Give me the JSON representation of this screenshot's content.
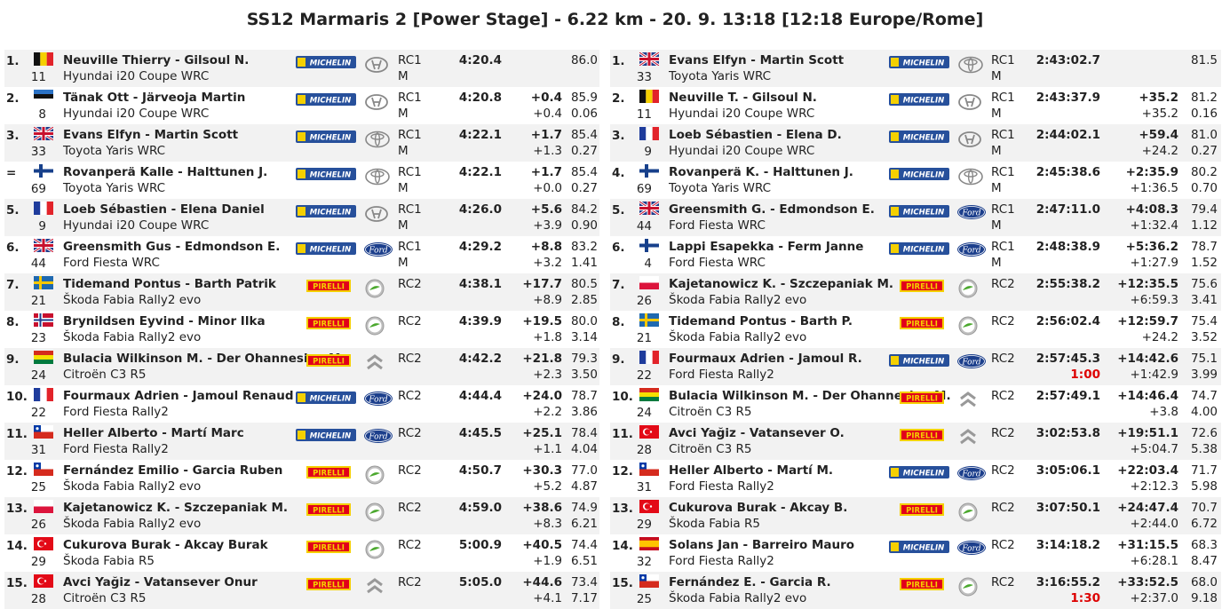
{
  "title": "SS12 Marmaris 2 [Power Stage] - 6.22 km - 20. 9. 13:18 [12:18 Europe/Rome]",
  "left": [
    {
      "pos": "1.",
      "flag": "BEL",
      "num": "11",
      "crew": "Neuville Thierry - Gilsoul N.",
      "car": "Hyundai i20 Coupe WRC",
      "tyre": "michelin",
      "brand": "hyundai",
      "cls": "RC1",
      "cls2": "M",
      "time": "4:20.4",
      "pen": "",
      "diff": "",
      "diff2": "",
      "spd": "86.0",
      "spd2": ""
    },
    {
      "pos": "2.",
      "flag": "EST",
      "num": "8",
      "crew": "Tänak Ott - Järveoja Martin",
      "car": "Hyundai i20 Coupe WRC",
      "tyre": "michelin",
      "brand": "hyundai",
      "cls": "RC1",
      "cls2": "M",
      "time": "4:20.8",
      "pen": "",
      "diff": "+0.4",
      "diff2": "+0.4",
      "spd": "85.9",
      "spd2": "0.06"
    },
    {
      "pos": "3.",
      "flag": "GBR",
      "num": "33",
      "crew": "Evans Elfyn - Martin Scott",
      "car": "Toyota Yaris WRC",
      "tyre": "michelin",
      "brand": "toyota",
      "cls": "RC1",
      "cls2": "M",
      "time": "4:22.1",
      "pen": "",
      "diff": "+1.7",
      "diff2": "+1.3",
      "spd": "85.4",
      "spd2": "0.27"
    },
    {
      "pos": "=",
      "flag": "FIN",
      "num": "69",
      "crew": "Rovanperä Kalle - Halttunen J.",
      "car": "Toyota Yaris WRC",
      "tyre": "michelin",
      "brand": "toyota",
      "cls": "RC1",
      "cls2": "M",
      "time": "4:22.1",
      "pen": "",
      "diff": "+1.7",
      "diff2": "+0.0",
      "spd": "85.4",
      "spd2": "0.27"
    },
    {
      "pos": "5.",
      "flag": "FRA",
      "num": "9",
      "crew": "Loeb Sébastien - Elena Daniel",
      "car": "Hyundai i20 Coupe WRC",
      "tyre": "michelin",
      "brand": "hyundai",
      "cls": "RC1",
      "cls2": "M",
      "time": "4:26.0",
      "pen": "",
      "diff": "+5.6",
      "diff2": "+3.9",
      "spd": "84.2",
      "spd2": "0.90"
    },
    {
      "pos": "6.",
      "flag": "GBR",
      "num": "44",
      "crew": "Greensmith Gus - Edmondson E.",
      "car": "Ford Fiesta WRC",
      "tyre": "michelin",
      "brand": "ford",
      "cls": "RC1",
      "cls2": "M",
      "time": "4:29.2",
      "pen": "",
      "diff": "+8.8",
      "diff2": "+3.2",
      "spd": "83.2",
      "spd2": "1.41"
    },
    {
      "pos": "7.",
      "flag": "SWE",
      "num": "21",
      "crew": "Tidemand Pontus - Barth Patrik",
      "car": "Škoda Fabia Rally2 evo",
      "tyre": "pirelli",
      "brand": "skoda",
      "cls": "RC2",
      "cls2": "",
      "time": "4:38.1",
      "pen": "",
      "diff": "+17.7",
      "diff2": "+8.9",
      "spd": "80.5",
      "spd2": "2.85"
    },
    {
      "pos": "8.",
      "flag": "NOR",
      "num": "23",
      "crew": "Brynildsen Eyvind - Minor Ilka",
      "car": "Škoda Fabia Rally2 evo",
      "tyre": "pirelli",
      "brand": "skoda",
      "cls": "RC2",
      "cls2": "",
      "time": "4:39.9",
      "pen": "",
      "diff": "+19.5",
      "diff2": "+1.8",
      "spd": "80.0",
      "spd2": "3.14"
    },
    {
      "pos": "9.",
      "flag": "BOL",
      "num": "24",
      "crew": "Bulacia Wilkinson M. - Der Ohannesian M.",
      "car": "Citroën C3 R5",
      "tyre": "pirelli",
      "brand": "citroen",
      "cls": "RC2",
      "cls2": "",
      "time": "4:42.2",
      "pen": "",
      "diff": "+21.8",
      "diff2": "+2.3",
      "spd": "79.3",
      "spd2": "3.50"
    },
    {
      "pos": "10.",
      "flag": "FRA",
      "num": "22",
      "crew": "Fourmaux Adrien - Jamoul Renaud",
      "car": "Ford Fiesta Rally2",
      "tyre": "michelin",
      "brand": "ford",
      "cls": "RC2",
      "cls2": "",
      "time": "4:44.4",
      "pen": "",
      "diff": "+24.0",
      "diff2": "+2.2",
      "spd": "78.7",
      "spd2": "3.86"
    },
    {
      "pos": "11.",
      "flag": "CHI",
      "num": "31",
      "crew": "Heller Alberto - Martí Marc",
      "car": "Ford Fiesta Rally2",
      "tyre": "michelin",
      "brand": "ford",
      "cls": "RC2",
      "cls2": "",
      "time": "4:45.5",
      "pen": "",
      "diff": "+25.1",
      "diff2": "+1.1",
      "spd": "78.4",
      "spd2": "4.04"
    },
    {
      "pos": "12.",
      "flag": "CHI",
      "num": "25",
      "crew": "Fernández Emilio - Garcia Ruben",
      "car": "Škoda Fabia Rally2 evo",
      "tyre": "pirelli",
      "brand": "skoda",
      "cls": "RC2",
      "cls2": "",
      "time": "4:50.7",
      "pen": "",
      "diff": "+30.3",
      "diff2": "+5.2",
      "spd": "77.0",
      "spd2": "4.87"
    },
    {
      "pos": "13.",
      "flag": "POL",
      "num": "26",
      "crew": "Kajetanowicz K. - Szczepaniak M.",
      "car": "Škoda Fabia Rally2 evo",
      "tyre": "pirelli",
      "brand": "skoda",
      "cls": "RC2",
      "cls2": "",
      "time": "4:59.0",
      "pen": "",
      "diff": "+38.6",
      "diff2": "+8.3",
      "spd": "74.9",
      "spd2": "6.21"
    },
    {
      "pos": "14.",
      "flag": "TUR",
      "num": "29",
      "crew": "Cukurova Burak - Akcay Burak",
      "car": "Škoda Fabia R5",
      "tyre": "pirelli",
      "brand": "skoda",
      "cls": "RC2",
      "cls2": "",
      "time": "5:00.9",
      "pen": "",
      "diff": "+40.5",
      "diff2": "+1.9",
      "spd": "74.4",
      "spd2": "6.51"
    },
    {
      "pos": "15.",
      "flag": "TUR",
      "num": "28",
      "crew": "Avci Yağiz - Vatansever Onur",
      "car": "Citroën C3 R5",
      "tyre": "pirelli",
      "brand": "citroen",
      "cls": "RC2",
      "cls2": "",
      "time": "5:05.0",
      "pen": "",
      "diff": "+44.6",
      "diff2": "+4.1",
      "spd": "73.4",
      "spd2": "7.17"
    }
  ],
  "right": [
    {
      "pos": "1.",
      "flag": "GBR",
      "num": "33",
      "crew": "Evans Elfyn - Martin Scott",
      "car": "Toyota Yaris WRC",
      "tyre": "michelin",
      "brand": "toyota",
      "cls": "RC1",
      "cls2": "M",
      "time": "2:43:02.7",
      "pen": "",
      "diff": "",
      "diff2": "",
      "spd": "81.5",
      "spd2": ""
    },
    {
      "pos": "2.",
      "flag": "BEL",
      "num": "11",
      "crew": "Neuville T. - Gilsoul N.",
      "car": "Hyundai i20 Coupe WRC",
      "tyre": "michelin",
      "brand": "hyundai",
      "cls": "RC1",
      "cls2": "M",
      "time": "2:43:37.9",
      "pen": "",
      "diff": "+35.2",
      "diff2": "+35.2",
      "spd": "81.2",
      "spd2": "0.16"
    },
    {
      "pos": "3.",
      "flag": "FRA",
      "num": "9",
      "crew": "Loeb Sébastien - Elena D.",
      "car": "Hyundai i20 Coupe WRC",
      "tyre": "michelin",
      "brand": "hyundai",
      "cls": "RC1",
      "cls2": "M",
      "time": "2:44:02.1",
      "pen": "",
      "diff": "+59.4",
      "diff2": "+24.2",
      "spd": "81.0",
      "spd2": "0.27"
    },
    {
      "pos": "4.",
      "flag": "FIN",
      "num": "69",
      "crew": "Rovanperä K. - Halttunen J.",
      "car": "Toyota Yaris WRC",
      "tyre": "michelin",
      "brand": "toyota",
      "cls": "RC1",
      "cls2": "M",
      "time": "2:45:38.6",
      "pen": "",
      "diff": "+2:35.9",
      "diff2": "+1:36.5",
      "spd": "80.2",
      "spd2": "0.70"
    },
    {
      "pos": "5.",
      "flag": "GBR",
      "num": "44",
      "crew": "Greensmith G. - Edmondson E.",
      "car": "Ford Fiesta WRC",
      "tyre": "michelin",
      "brand": "ford",
      "cls": "RC1",
      "cls2": "M",
      "time": "2:47:11.0",
      "pen": "",
      "diff": "+4:08.3",
      "diff2": "+1:32.4",
      "spd": "79.4",
      "spd2": "1.12"
    },
    {
      "pos": "6.",
      "flag": "FIN",
      "num": "4",
      "crew": "Lappi Esapekka - Ferm Janne",
      "car": "Ford Fiesta WRC",
      "tyre": "michelin",
      "brand": "ford",
      "cls": "RC1",
      "cls2": "M",
      "time": "2:48:38.9",
      "pen": "",
      "diff": "+5:36.2",
      "diff2": "+1:27.9",
      "spd": "78.7",
      "spd2": "1.52"
    },
    {
      "pos": "7.",
      "flag": "POL",
      "num": "26",
      "crew": "Kajetanowicz K. - Szczepaniak M.",
      "car": "Škoda Fabia Rally2 evo",
      "tyre": "pirelli",
      "brand": "skoda",
      "cls": "RC2",
      "cls2": "",
      "time": "2:55:38.2",
      "pen": "",
      "diff": "+12:35.5",
      "diff2": "+6:59.3",
      "spd": "75.6",
      "spd2": "3.41"
    },
    {
      "pos": "8.",
      "flag": "SWE",
      "num": "21",
      "crew": "Tidemand Pontus - Barth P.",
      "car": "Škoda Fabia Rally2 evo",
      "tyre": "pirelli",
      "brand": "skoda",
      "cls": "RC2",
      "cls2": "",
      "time": "2:56:02.4",
      "pen": "",
      "diff": "+12:59.7",
      "diff2": "+24.2",
      "spd": "75.4",
      "spd2": "3.52"
    },
    {
      "pos": "9.",
      "flag": "FRA",
      "num": "22",
      "crew": "Fourmaux Adrien - Jamoul R.",
      "car": "Ford Fiesta Rally2",
      "tyre": "michelin",
      "brand": "ford",
      "cls": "RC2",
      "cls2": "",
      "time": "2:57:45.3",
      "pen": "1:00",
      "diff": "+14:42.6",
      "diff2": "+1:42.9",
      "spd": "75.1",
      "spd2": "3.99"
    },
    {
      "pos": "10.",
      "flag": "BOL",
      "num": "24",
      "crew": "Bulacia Wilkinson M. - Der Ohannesian M.",
      "car": "Citroën C3 R5",
      "tyre": "pirelli",
      "brand": "citroen",
      "cls": "RC2",
      "cls2": "",
      "time": "2:57:49.1",
      "pen": "",
      "diff": "+14:46.4",
      "diff2": "+3.8",
      "spd": "74.7",
      "spd2": "4.00"
    },
    {
      "pos": "11.",
      "flag": "TUR",
      "num": "28",
      "crew": "Avci Yağiz - Vatansever O.",
      "car": "Citroën C3 R5",
      "tyre": "pirelli",
      "brand": "citroen",
      "cls": "RC2",
      "cls2": "",
      "time": "3:02:53.8",
      "pen": "",
      "diff": "+19:51.1",
      "diff2": "+5:04.7",
      "spd": "72.6",
      "spd2": "5.38"
    },
    {
      "pos": "12.",
      "flag": "CHI",
      "num": "31",
      "crew": "Heller Alberto - Martí M.",
      "car": "Ford Fiesta Rally2",
      "tyre": "michelin",
      "brand": "ford",
      "cls": "RC2",
      "cls2": "",
      "time": "3:05:06.1",
      "pen": "",
      "diff": "+22:03.4",
      "diff2": "+2:12.3",
      "spd": "71.7",
      "spd2": "5.98"
    },
    {
      "pos": "13.",
      "flag": "TUR",
      "num": "29",
      "crew": "Cukurova Burak - Akcay B.",
      "car": "Škoda Fabia R5",
      "tyre": "pirelli",
      "brand": "skoda",
      "cls": "RC2",
      "cls2": "",
      "time": "3:07:50.1",
      "pen": "",
      "diff": "+24:47.4",
      "diff2": "+2:44.0",
      "spd": "70.7",
      "spd2": "6.72"
    },
    {
      "pos": "14.",
      "flag": "ESP",
      "num": "32",
      "crew": "Solans Jan - Barreiro Mauro",
      "car": "Ford Fiesta Rally2",
      "tyre": "michelin",
      "brand": "ford",
      "cls": "RC2",
      "cls2": "",
      "time": "3:14:18.2",
      "pen": "",
      "diff": "+31:15.5",
      "diff2": "+6:28.1",
      "spd": "68.3",
      "spd2": "8.47"
    },
    {
      "pos": "15.",
      "flag": "CHI",
      "num": "25",
      "crew": "Fernández E. - Garcia R.",
      "car": "Škoda Fabia Rally2 evo",
      "tyre": "pirelli",
      "brand": "skoda",
      "cls": "RC2",
      "cls2": "",
      "time": "3:16:55.2",
      "pen": "1:30",
      "diff": "+33:52.5",
      "diff2": "+2:37.0",
      "spd": "68.0",
      "spd2": "9.18"
    }
  ]
}
